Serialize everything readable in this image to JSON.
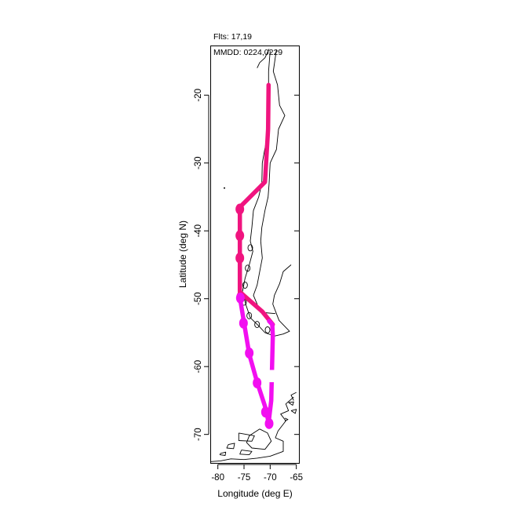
{
  "header": {
    "flights_label": "Flts: 17,19",
    "dates_label": "MMDD: 0224,0229"
  },
  "axes": {
    "xlabel": "Longitude (deg E)",
    "ylabel": "Latitude (deg N)",
    "xlim": [
      -81.3,
      -64.5
    ],
    "ylim": [
      -74.2,
      -12.8
    ],
    "xticks": [
      -80,
      -75,
      -70,
      -65
    ],
    "yticks": [
      -20,
      -30,
      -40,
      -50,
      -60,
      -70
    ],
    "xtick_labels": [
      "-80",
      "-75",
      "-70",
      "-65"
    ],
    "ytick_labels": [
      "-20",
      "-30",
      "-40",
      "-50",
      "-60",
      "-70"
    ]
  },
  "chart_data": {
    "type": "line",
    "xlabel": "Longitude (deg E)",
    "ylabel": "Latitude (deg N)",
    "xlim": [
      -81.3,
      -64.5
    ],
    "ylim": [
      -74.2,
      -12.8
    ],
    "grid": false,
    "series": [
      {
        "color": "#f0147f",
        "x": [
          -70.3,
          -70.4,
          -71.0,
          -75.8,
          -75.8,
          -75.8,
          -75.8,
          -75.8,
          -71.5,
          -69.5
        ],
        "y": [
          -18.5,
          -25.0,
          -32.8,
          -36.5,
          -38.5,
          -42.0,
          -45.0,
          -49.0,
          -51.9,
          -53.8
        ],
        "markers": [
          [
            -75.8,
            -36.8
          ],
          [
            -75.8,
            -40.7
          ],
          [
            -75.8,
            -44.0
          ],
          [
            -75.6,
            -49.7
          ]
        ]
      },
      {
        "color": "#f20ff0",
        "x": [
          -75.8,
          -75.0,
          -74.0,
          -72.5,
          -70.8,
          -70.3,
          -69.8,
          -69.5,
          -69.6,
          -70.2
        ],
        "y": [
          -49.8,
          -53.5,
          -58.2,
          -62.3,
          -66.3,
          -68.3,
          -65.0,
          -55.5,
          -53.8,
          -53.3
        ],
        "markers": [
          [
            -75.7,
            -49.9
          ],
          [
            -75.1,
            -53.6
          ],
          [
            -74.0,
            -58.0
          ],
          [
            -72.5,
            -62.4
          ],
          [
            -70.9,
            -66.7
          ],
          [
            -70.2,
            -68.4
          ]
        ],
        "gap": [
          [
            -69.7,
            -60.5
          ],
          [
            -69.7,
            -62.3
          ]
        ]
      }
    ]
  },
  "map": {
    "features": [
      "coastline",
      "country-border"
    ]
  }
}
